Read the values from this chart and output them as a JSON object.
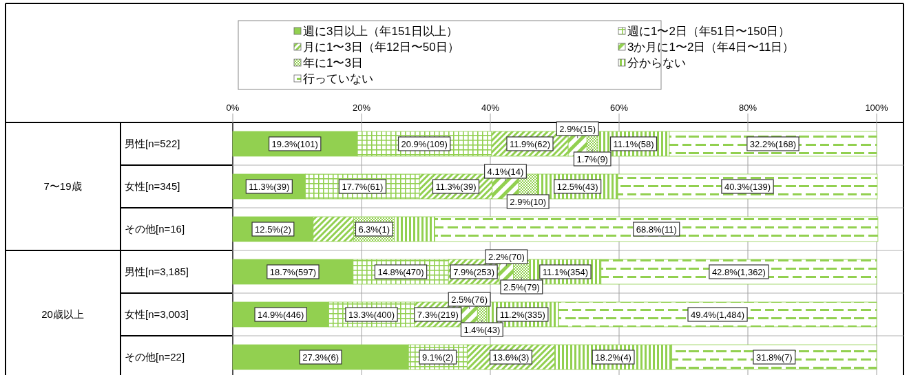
{
  "chart_data": {
    "type": "bar",
    "orientation": "horizontal",
    "stacked": true,
    "grid": "x",
    "legend": "top",
    "categories": [
      "男性[n=522]",
      "女性[n=345]",
      "その他[n=16]",
      "男性[n=3,185]",
      "女性[n=3,003]",
      "その他[n=22]"
    ],
    "annotations": [
      "7〜19歳",
      "20歳以上"
    ],
    "xlim": [
      0,
      100
    ],
    "xticks": [
      {
        "value": 0,
        "label": "0%"
      },
      {
        "value": 20,
        "label": "20%"
      },
      {
        "value": 40,
        "label": "40%"
      },
      {
        "value": 60,
        "label": "60%"
      },
      {
        "value": 80,
        "label": "80%"
      },
      {
        "value": 100,
        "label": "100%"
      }
    ],
    "series": [
      {
        "name": "週に3日以上（年151日以上）",
        "color": "#92d050",
        "values": [
          19.3,
          11.3,
          12.5,
          18.7,
          14.9,
          27.3
        ],
        "value_labels": [
          "19.3%(101)",
          "11.3%(39)",
          "12.5%(2)",
          "18.7%(597)",
          "14.9%(446)",
          "27.3%(6)"
        ]
      },
      {
        "name": "週に1〜2日（年51日〜150日）",
        "color": "#92d050",
        "values": [
          20.9,
          17.7,
          0,
          14.8,
          13.3,
          9.1
        ],
        "value_labels": [
          "20.9%(109)",
          "17.7%(61)",
          null,
          "14.8%(470)",
          "13.3%(400)",
          "9.1%(2)"
        ]
      },
      {
        "name": "月に1〜3日（年12日〜50日）",
        "color": "#92d050",
        "values": [
          11.9,
          11.3,
          6.3,
          7.9,
          7.3,
          13.6
        ],
        "value_labels": [
          "11.9%(62)",
          "11.3%(39)",
          null,
          "7.9%(253)",
          "7.3%(219)",
          "13.6%(3)"
        ]
      },
      {
        "name": "3か月に1〜2日（年4日〜11日）",
        "color": "#92d050",
        "values": [
          2.9,
          4.1,
          0,
          2.2,
          2.5,
          0
        ],
        "value_labels": [
          "2.9%(15)",
          "4.1%(14)",
          null,
          "2.2%(70)",
          "2.5%(76)",
          null
        ]
      },
      {
        "name": "年に1〜3日",
        "color": "#92d050",
        "values": [
          1.7,
          2.9,
          6.3,
          2.5,
          1.4,
          0
        ],
        "value_labels": [
          "1.7%(9)",
          "2.9%(10)",
          "6.3%(1)",
          "2.5%(79)",
          "1.4%(43)",
          null
        ]
      },
      {
        "name": "分からない",
        "color": "#92d050",
        "values": [
          11.1,
          12.5,
          6.3,
          11.1,
          11.2,
          18.2
        ],
        "value_labels": [
          "11.1%(58)",
          "12.5%(43)",
          null,
          "11.1%(354)",
          "11.2%(335)",
          "18.2%(4)"
        ]
      },
      {
        "name": "行っていない",
        "color": "#92d050",
        "values": [
          32.2,
          40.3,
          68.8,
          42.8,
          49.4,
          31.8
        ],
        "value_labels": [
          "32.2%(168)",
          "40.3%(139)",
          "68.8%(11)",
          "42.8%(1,362)",
          "49.4%(1,484)",
          "31.8%(7)"
        ]
      }
    ]
  }
}
